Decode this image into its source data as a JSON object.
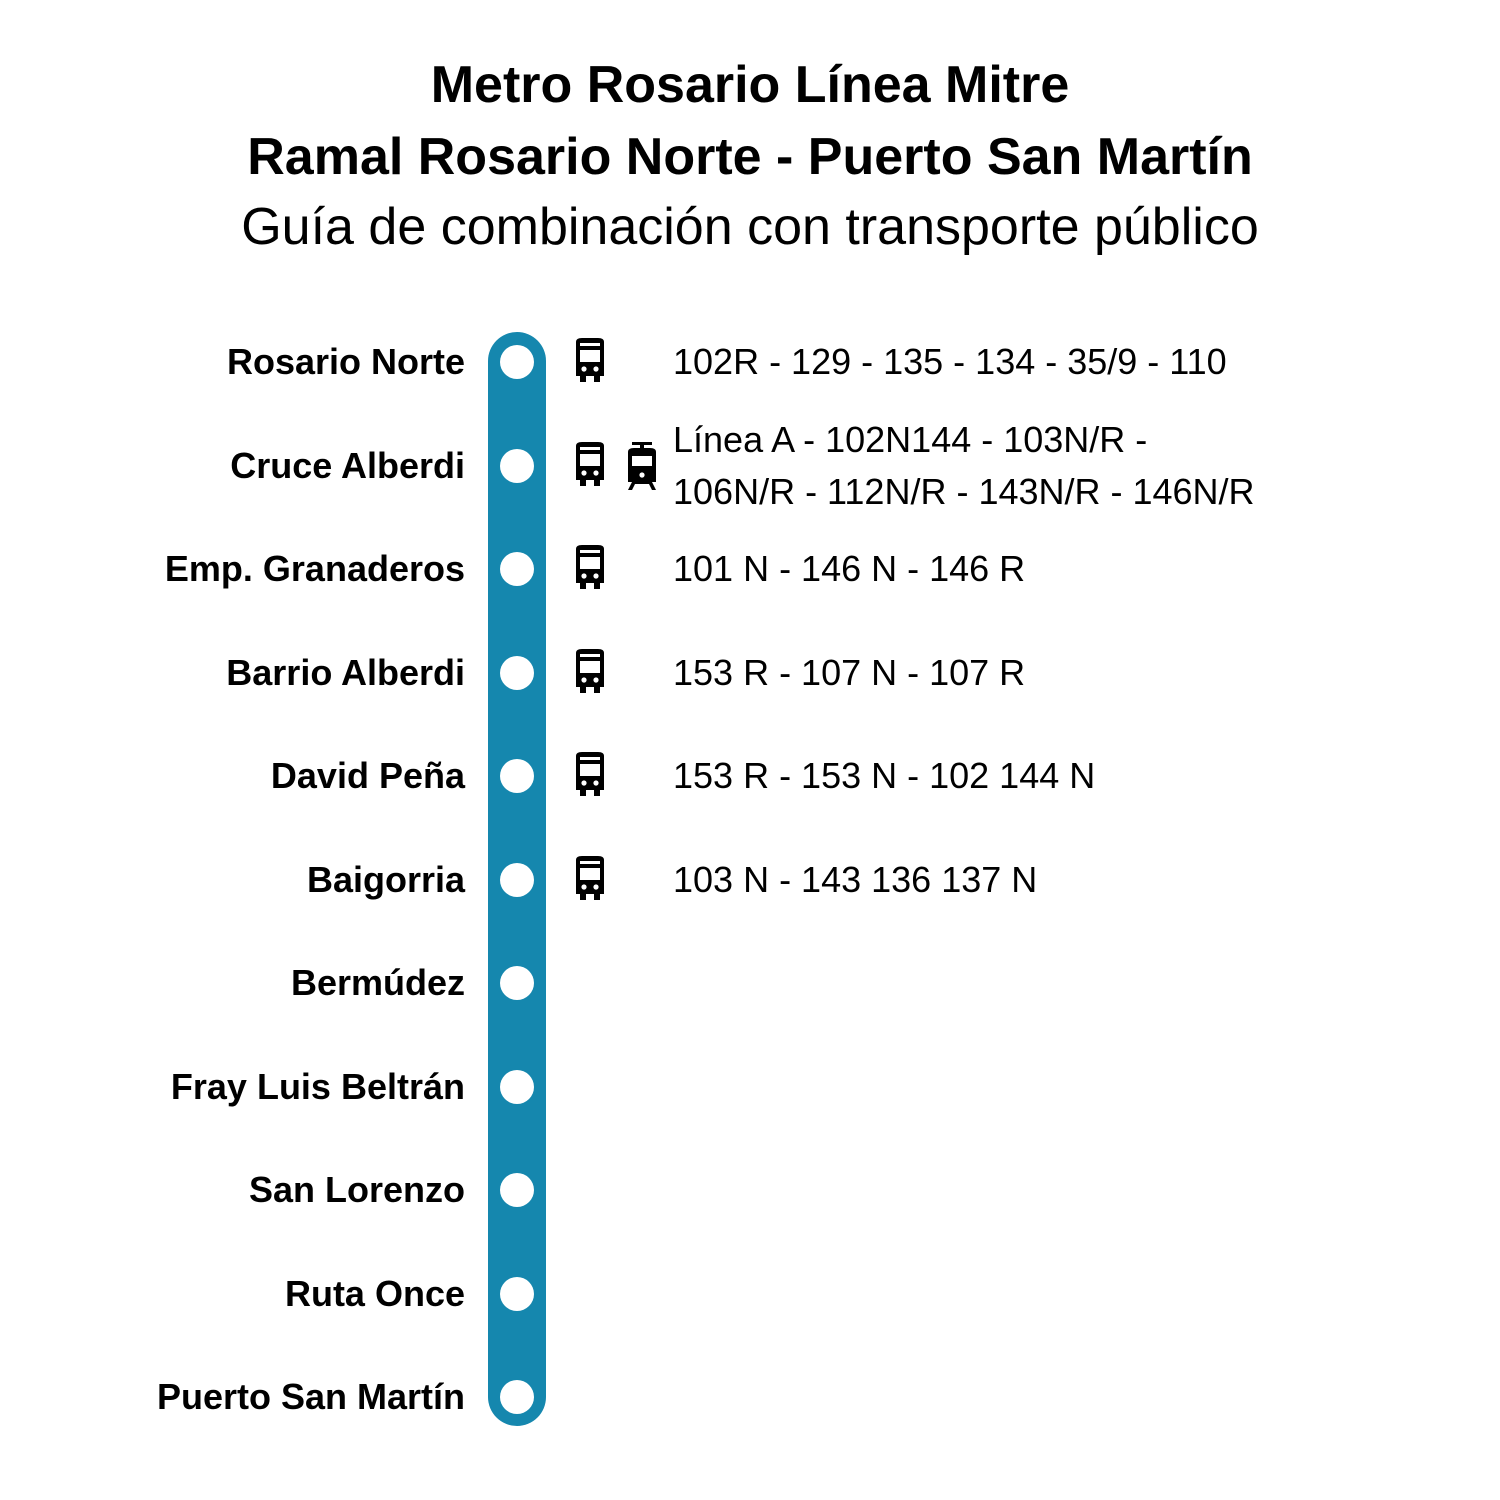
{
  "header": {
    "title_line1": "Metro Rosario Línea Mitre",
    "title_line2": "Ramal Rosario Norte - Puerto San Martín",
    "subtitle": "Guía de combinación con transporte público"
  },
  "colors": {
    "line": "#1587ae",
    "station_dot": "#ffffff",
    "text": "#000000"
  },
  "stations": [
    {
      "name": "Rosario Norte",
      "icons": [
        "bus-icon"
      ],
      "routes": [
        "102R - 129 - 135 - 134 - 35/9 - 110"
      ]
    },
    {
      "name": "Cruce Alberdi",
      "icons": [
        "bus-icon",
        "tram-icon"
      ],
      "routes": [
        "Línea A - 102N144 - 103N/R -",
        "106N/R - 112N/R - 143N/R - 146N/R"
      ]
    },
    {
      "name": "Emp. Granaderos",
      "icons": [
        "bus-icon"
      ],
      "routes": [
        "101 N - 146 N - 146 R"
      ]
    },
    {
      "name": "Barrio Alberdi",
      "icons": [
        "bus-icon"
      ],
      "routes": [
        "153 R - 107 N - 107 R"
      ]
    },
    {
      "name": "David Peña",
      "icons": [
        "bus-icon"
      ],
      "routes": [
        "153 R - 153 N - 102 144 N"
      ]
    },
    {
      "name": "Baigorria",
      "icons": [
        "bus-icon"
      ],
      "routes": [
        "103 N - 143 136 137 N"
      ]
    },
    {
      "name": "Bermúdez",
      "icons": [],
      "routes": []
    },
    {
      "name": "Fray Luis Beltrán",
      "icons": [],
      "routes": []
    },
    {
      "name": "San Lorenzo",
      "icons": [],
      "routes": []
    },
    {
      "name": "Ruta Once",
      "icons": [],
      "routes": []
    },
    {
      "name": "Puerto San Martín",
      "icons": [],
      "routes": []
    }
  ]
}
